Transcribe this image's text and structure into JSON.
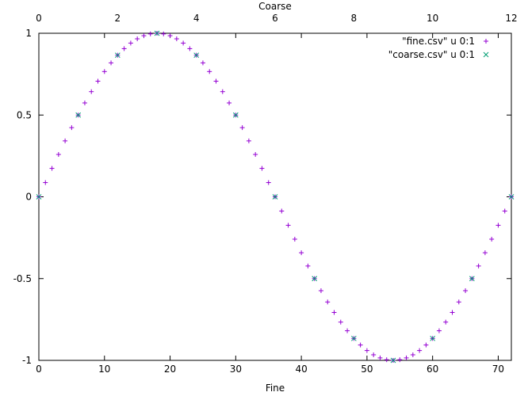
{
  "chart_data": {
    "type": "scatter",
    "title": "",
    "xlabel": "Fine",
    "x2label": "Coarse",
    "ylabel": "",
    "xlim": [
      0,
      72
    ],
    "x2lim": [
      0,
      12
    ],
    "ylim": [
      -1,
      1
    ],
    "xticks": [
      "0",
      "10",
      "20",
      "30",
      "40",
      "50",
      "60",
      "70"
    ],
    "xtick_values": [
      0,
      10,
      20,
      30,
      40,
      50,
      60,
      70
    ],
    "x2ticks": [
      "0",
      "2",
      "4",
      "6",
      "8",
      "10",
      "12"
    ],
    "x2tick_values": [
      0,
      2,
      4,
      6,
      8,
      10,
      12
    ],
    "yticks": [
      "-1",
      "-0.5",
      "0",
      "0.5",
      "1"
    ],
    "ytick_values": [
      -1,
      -0.5,
      0,
      0.5,
      1
    ],
    "grid": false,
    "legend_position": "top-right",
    "series": [
      {
        "name": "\"fine.csv\" u 0:1",
        "marker": "plus",
        "color": "#9400d3",
        "x": [
          0,
          1,
          2,
          3,
          4,
          5,
          6,
          7,
          8,
          9,
          10,
          11,
          12,
          13,
          14,
          15,
          16,
          17,
          18,
          19,
          20,
          21,
          22,
          23,
          24,
          25,
          26,
          27,
          28,
          29,
          30,
          31,
          32,
          33,
          34,
          35,
          36,
          37,
          38,
          39,
          40,
          41,
          42,
          43,
          44,
          45,
          46,
          47,
          48,
          49,
          50,
          51,
          52,
          53,
          54,
          55,
          56,
          57,
          58,
          59,
          60,
          61,
          62,
          63,
          64,
          65,
          66,
          67,
          68,
          69,
          70,
          71,
          72
        ],
        "values": [
          0,
          0.087,
          0.174,
          0.259,
          0.342,
          0.423,
          0.5,
          0.574,
          0.643,
          0.707,
          0.766,
          0.819,
          0.866,
          0.906,
          0.94,
          0.966,
          0.985,
          0.996,
          1,
          0.996,
          0.985,
          0.966,
          0.94,
          0.906,
          0.866,
          0.819,
          0.766,
          0.707,
          0.643,
          0.574,
          0.5,
          0.423,
          0.342,
          0.259,
          0.174,
          0.087,
          0,
          -0.087,
          -0.174,
          -0.259,
          -0.342,
          -0.423,
          -0.5,
          -0.574,
          -0.643,
          -0.707,
          -0.766,
          -0.819,
          -0.866,
          -0.906,
          -0.94,
          -0.966,
          -0.985,
          -0.996,
          -1,
          -0.996,
          -0.985,
          -0.966,
          -0.94,
          -0.906,
          -0.866,
          -0.819,
          -0.766,
          -0.707,
          -0.643,
          -0.574,
          -0.5,
          -0.423,
          -0.342,
          -0.259,
          -0.174,
          -0.087,
          0
        ]
      },
      {
        "name": "\"coarse.csv\" u 0:1",
        "marker": "cross",
        "color": "#009e73",
        "x": [
          0,
          1,
          2,
          3,
          4,
          5,
          6,
          7,
          8,
          9,
          10,
          11,
          12
        ],
        "values": [
          0,
          0.5,
          0.866,
          1,
          0.866,
          0.5,
          0,
          -0.5,
          -0.866,
          -1,
          -0.866,
          -0.5,
          0
        ]
      }
    ]
  }
}
